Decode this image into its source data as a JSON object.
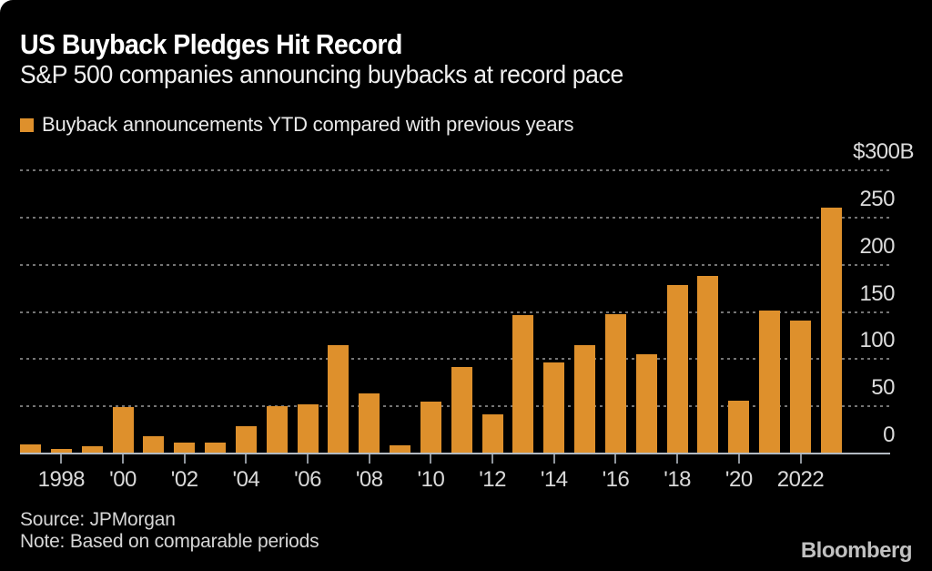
{
  "header": {
    "title": "US Buyback Pledges Hit Record",
    "subtitle": "S&P 500 companies announcing buybacks at record pace"
  },
  "legend": {
    "label": "Buyback announcements YTD compared with previous years",
    "swatch_color": "#de902c"
  },
  "chart_data": {
    "type": "bar",
    "title": "US Buyback Pledges Hit Record",
    "subtitle": "S&P 500 companies announcing buybacks at record pace",
    "unit": "billions USD",
    "categories": [
      1997,
      1998,
      1999,
      2000,
      2001,
      2002,
      2003,
      2004,
      2005,
      2006,
      2007,
      2008,
      2009,
      2010,
      2011,
      2012,
      2013,
      2014,
      2015,
      2016,
      2017,
      2018,
      2019,
      2020,
      2021,
      2022,
      2023
    ],
    "values": [
      10,
      5,
      8,
      49,
      18,
      12,
      12,
      29,
      50,
      52,
      115,
      64,
      9,
      55,
      92,
      41,
      147,
      96,
      115,
      148,
      105,
      178,
      188,
      56,
      151,
      141,
      260
    ],
    "ylim": [
      0,
      300
    ],
    "yticks": [
      {
        "value": 0,
        "label": "0"
      },
      {
        "value": 50,
        "label": "50"
      },
      {
        "value": 100,
        "label": "100"
      },
      {
        "value": 150,
        "label": "150"
      },
      {
        "value": 200,
        "label": "200"
      },
      {
        "value": 250,
        "label": "250"
      },
      {
        "value": 300,
        "label": "$300B"
      }
    ],
    "xticks": [
      {
        "year": 1998,
        "label": "1998"
      },
      {
        "year": 2000,
        "label": "'00"
      },
      {
        "year": 2002,
        "label": "'02"
      },
      {
        "year": 2004,
        "label": "'04"
      },
      {
        "year": 2006,
        "label": "'06"
      },
      {
        "year": 2008,
        "label": "'08"
      },
      {
        "year": 2010,
        "label": "'10"
      },
      {
        "year": 2012,
        "label": "'12"
      },
      {
        "year": 2014,
        "label": "'14"
      },
      {
        "year": 2016,
        "label": "'16"
      },
      {
        "year": 2018,
        "label": "'18"
      },
      {
        "year": 2020,
        "label": "'20"
      },
      {
        "year": 2022,
        "label": "2022"
      }
    ],
    "grid": "horizontal-dotted",
    "legend_position": "top-left",
    "y_axis_side": "right",
    "bar_color": "#de902c",
    "background_color": "#000000"
  },
  "footer": {
    "source": "Source: JPMorgan",
    "note": "Note: Based on comparable periods",
    "brand": "Bloomberg"
  }
}
